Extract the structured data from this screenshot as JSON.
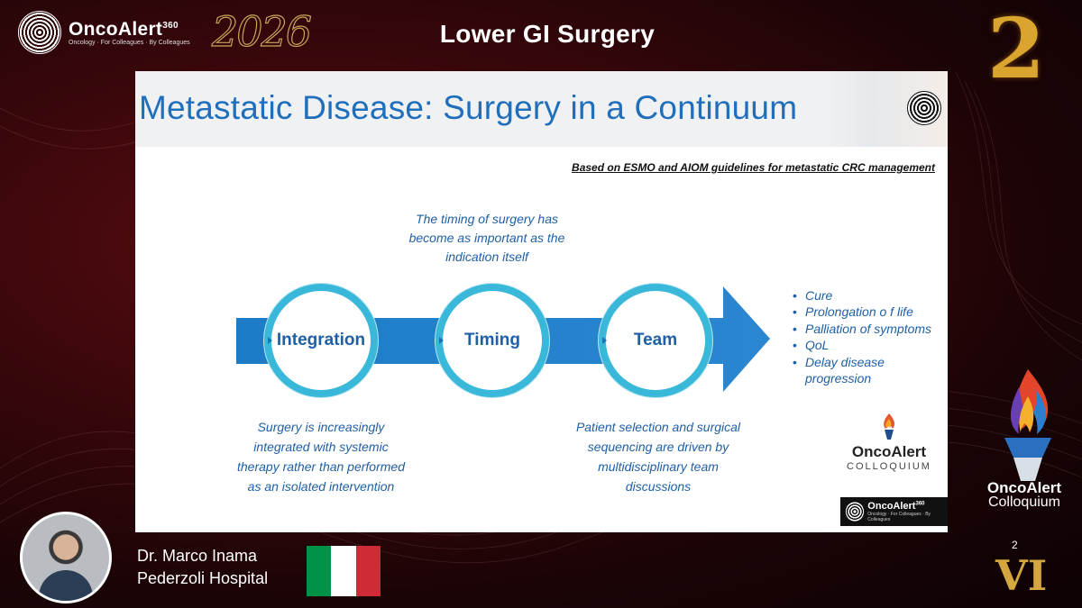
{
  "header": {
    "brand": "OncoAlert",
    "brand_sup": "360",
    "brand_tagline": "Oncology · For Colleagues · By Colleagues",
    "year": "2026",
    "session_title": "Lower GI Surgery",
    "day_number": "2"
  },
  "slide": {
    "title": "Metastatic Disease: Surgery in a Continuum",
    "guideline_note": "Based on ESMO and AIOM guidelines for metastatic CRC management",
    "timing_note": "The timing of surgery has become as important as the indication itself",
    "circles": [
      "Integration",
      "Timing",
      "Team"
    ],
    "outcomes": [
      "Cure",
      "Prolongation o f life",
      "Palliation of symptoms",
      "QoL",
      "Delay disease progression"
    ],
    "note_integration": "Surgery is increasingly integrated with systemic therapy rather than performed as an isolated intervention",
    "note_team": "Patient selection and surgical sequencing are driven by multidisciplinary team discussions",
    "colloquium_logo": {
      "name": "OncoAlert",
      "sub": "COLLOQUIUM"
    },
    "small_logo": {
      "name": "OncoAlert",
      "sup": "360",
      "tagline": "Oncology · For Colleagues · By Colleagues"
    }
  },
  "speaker": {
    "name": "Dr. Marco Inama",
    "affiliation": "Pederzoli Hospital",
    "flag_colors": [
      "#009246",
      "#ffffff",
      "#ce2b37"
    ]
  },
  "event": {
    "name": "OncoAlert",
    "sub": "Colloquium",
    "edition_small": "2",
    "edition_roman": "VI"
  },
  "colors": {
    "accent_blue": "#1f6fbd",
    "circle_border": "#3ab8d9",
    "gold": "#d4a640",
    "background": "#3a070b"
  }
}
